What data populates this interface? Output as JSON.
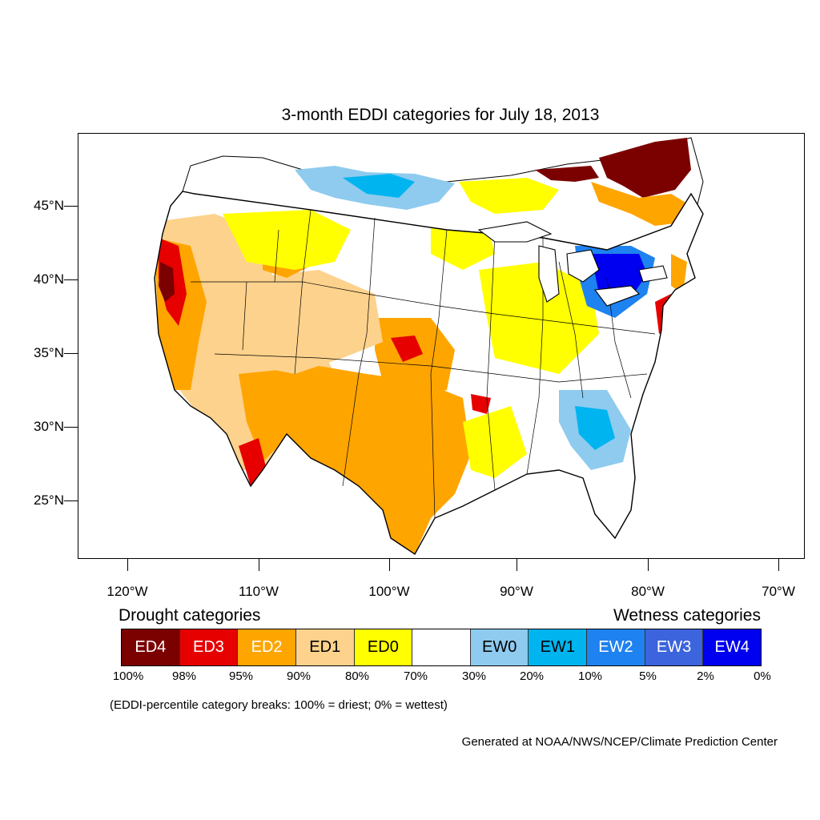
{
  "title": "3-month EDDI categories for July 18, 2013",
  "map": {
    "lat_labels": [
      "45°N",
      "40°N",
      "35°N",
      "30°N",
      "25°N"
    ],
    "lon_labels": [
      "120°W",
      "110°W",
      "100°W",
      "90°W",
      "80°W",
      "70°W"
    ],
    "regions": [
      {
        "name": "ED4",
        "area": "southern Ontario / Quebec (Canada)"
      },
      {
        "name": "ED3",
        "area": "northern California coast"
      },
      {
        "name": "ED2",
        "area": "Southwest and southern Plains"
      },
      {
        "name": "EW4",
        "area": "lower Great Lakes region"
      },
      {
        "name": "EW1",
        "area": "Georgia and South Carolina"
      }
    ]
  },
  "legend": {
    "drought_heading": "Drought categories",
    "wetness_heading": "Wetness categories",
    "categories": [
      {
        "label": "ED4",
        "color": "#7b0000",
        "text_color": "#ffffff"
      },
      {
        "label": "ED3",
        "color": "#e60000",
        "text_color": "#ffffff"
      },
      {
        "label": "ED2",
        "color": "#ffa500",
        "text_color": "#ffffff"
      },
      {
        "label": "ED1",
        "color": "#fdd28c",
        "text_color": "#000000"
      },
      {
        "label": "ED0",
        "color": "#ffff00",
        "text_color": "#000000"
      },
      {
        "label": "",
        "color": "#ffffff",
        "text_color": "#000000"
      },
      {
        "label": "EW0",
        "color": "#8ecbee",
        "text_color": "#000000"
      },
      {
        "label": "EW1",
        "color": "#00b4f0",
        "text_color": "#000000"
      },
      {
        "label": "EW2",
        "color": "#1e82f0",
        "text_color": "#ffffff"
      },
      {
        "label": "EW3",
        "color": "#3c64dc",
        "text_color": "#ffffff"
      },
      {
        "label": "EW4",
        "color": "#0000f0",
        "text_color": "#ffffff"
      }
    ],
    "percentiles": [
      "100%",
      "98%",
      "95%",
      "90%",
      "80%",
      "70%",
      "30%",
      "20%",
      "10%",
      "5%",
      "2%",
      "0%"
    ]
  },
  "footnote": "(EDDI-percentile category breaks: 100% = driest; 0% = wettest)",
  "credit": "Generated at NOAA/NWS/NCEP/Climate Prediction Center"
}
